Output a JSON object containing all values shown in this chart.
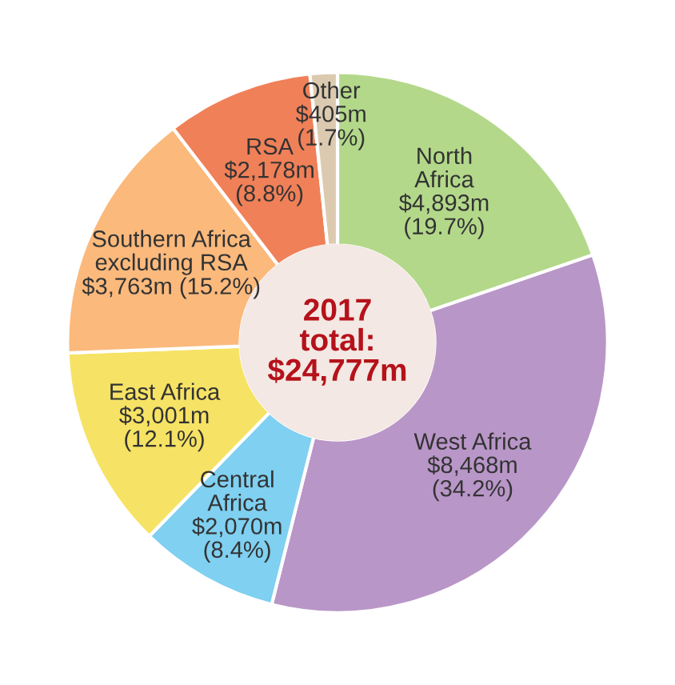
{
  "chart_data": {
    "type": "donut",
    "title": "2017\ntotal:\n$24,777m",
    "categories": [
      "North\nAfrica",
      "West Africa",
      "Central\nAfrica",
      "East Africa",
      "Southern Africa\nexcluding RSA",
      "RSA",
      "Other"
    ],
    "values": [
      4893,
      8468,
      2070,
      3001,
      3763,
      2178,
      405
    ],
    "value_labels": [
      "$4,893m",
      "$8,468m",
      "$2,070m",
      "$3,001m",
      "$3,763m",
      "$2,178m",
      "$405m"
    ],
    "annotations": [
      "(19.7%)",
      "(34.2%)",
      "(8.4%)",
      "(12.1%)",
      "(15.2%)",
      "(8.8%)",
      "(1.7%)"
    ],
    "colors": [
      "#b3d88a",
      "#b996c8",
      "#7fd0f1",
      "#f6e264",
      "#fbb97c",
      "#f08058",
      "#dccab0"
    ]
  }
}
